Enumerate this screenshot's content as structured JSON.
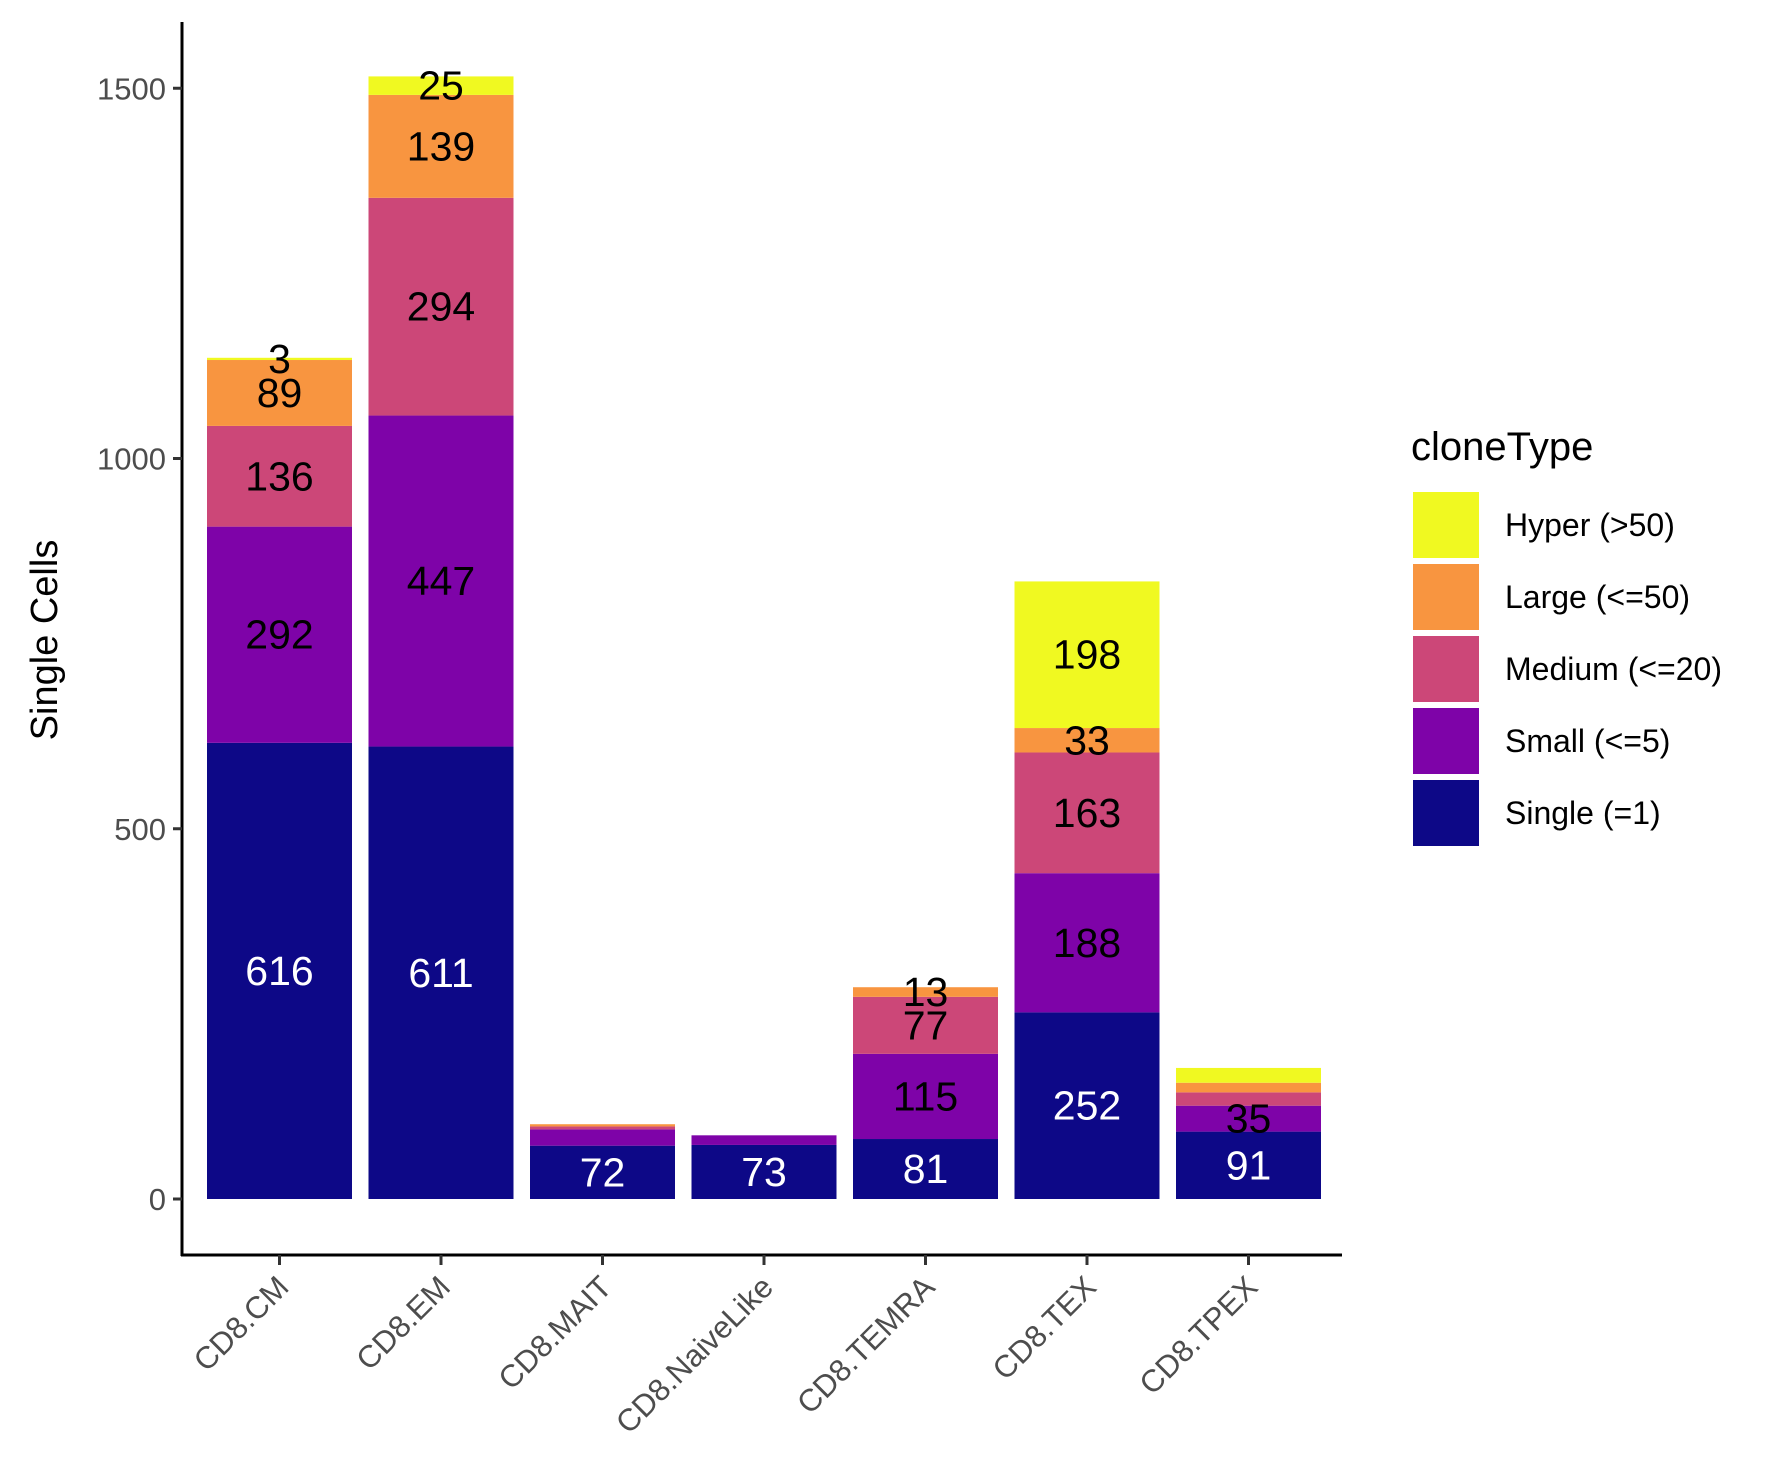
{
  "chart_data": {
    "type": "bar",
    "stacked": true,
    "categories": [
      "CD8.CM",
      "CD8.EM",
      "CD8.MAIT",
      "CD8.NaiveLike",
      "CD8.TEMRA",
      "CD8.TEX",
      "CD8.TPEX"
    ],
    "series": [
      {
        "name": "Single (=1)",
        "color": "#0d0887",
        "values": [
          616,
          611,
          72,
          73,
          81,
          252,
          91
        ]
      },
      {
        "name": "Small (<=5)",
        "color": "#7e03a8",
        "values": [
          292,
          447,
          22,
          13,
          115,
          188,
          35
        ]
      },
      {
        "name": "Medium (<=20)",
        "color": "#cc4778",
        "values": [
          136,
          294,
          4,
          0,
          77,
          163,
          18
        ]
      },
      {
        "name": "Large (<=50)",
        "color": "#f89540",
        "values": [
          89,
          139,
          3,
          0,
          13,
          33,
          13
        ]
      },
      {
        "name": "Hyper (>50)",
        "color": "#f0f921",
        "values": [
          3,
          25,
          0,
          0,
          0,
          198,
          20
        ]
      }
    ],
    "data_labels": [
      [
        "616",
        "292",
        "136",
        "89",
        "3"
      ],
      [
        "611",
        "447",
        "294",
        "139",
        "25"
      ],
      [
        "72",
        "",
        "",
        "",
        ""
      ],
      [
        "73",
        "",
        "",
        "",
        ""
      ],
      [
        "81",
        "115",
        "77",
        "13",
        ""
      ],
      [
        "252",
        "188",
        "163",
        "33",
        "198"
      ],
      [
        "91",
        "35",
        "",
        "",
        ""
      ]
    ],
    "label_colors": [
      "#ffffff",
      "#000000",
      "#000000",
      "#000000",
      "#000000"
    ],
    "ylabel": "Single Cells",
    "xlabel": "",
    "ylim": [
      0,
      1600
    ],
    "yticks": [
      0,
      500,
      1000,
      1500
    ],
    "grid": false,
    "legend": {
      "title": "cloneType",
      "placement": "right",
      "order": [
        "Hyper (>50)",
        "Large (<=50)",
        "Medium (<=20)",
        "Small (<=5)",
        "Single (=1)"
      ]
    }
  }
}
